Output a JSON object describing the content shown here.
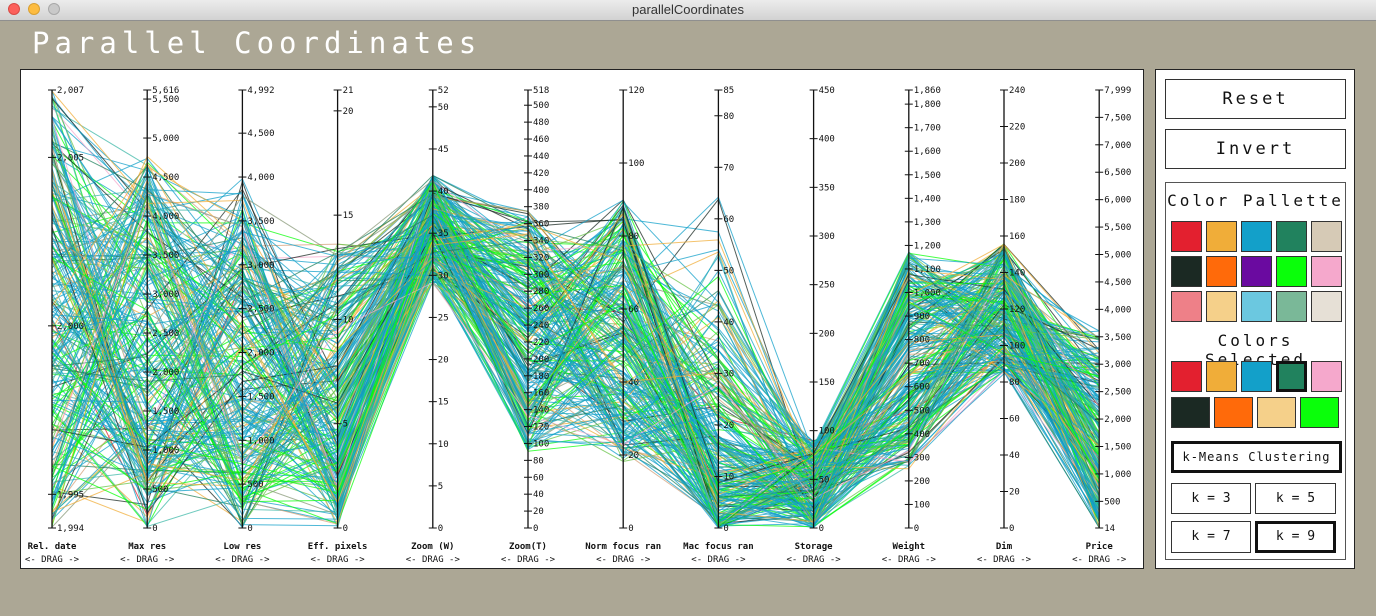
{
  "window": {
    "title": "parallelCoordinates"
  },
  "app_title": "Parallel Coordinates",
  "axes": [
    {
      "name": "Rel. date",
      "range": [
        1994,
        2007
      ],
      "ticks": [
        1994,
        1995,
        2000,
        2005,
        2007
      ],
      "tick_labels": [
        "1,994",
        "1,995",
        "2,000",
        "2,005",
        "2,007"
      ]
    },
    {
      "name": "Max res",
      "range": [
        0,
        5616
      ],
      "ticks": [
        0,
        500,
        1000,
        1500,
        2000,
        2500,
        3000,
        3500,
        4000,
        4500,
        5000,
        5500,
        5616
      ],
      "tick_labels": [
        "0",
        "500",
        "1,000",
        "1,500",
        "2,000",
        "2,500",
        "3,000",
        "3,500",
        "4,000",
        "4,500",
        "5,000",
        "5,500",
        "5,616"
      ]
    },
    {
      "name": "Low res",
      "range": [
        0,
        4992
      ],
      "ticks": [
        0,
        500,
        1000,
        1500,
        2000,
        2500,
        3000,
        3500,
        4000,
        4500,
        4992
      ],
      "tick_labels": [
        "0",
        "500",
        "1,000",
        "1,500",
        "2,000",
        "2,500",
        "3,000",
        "3,500",
        "4,000",
        "4,500",
        "4,992"
      ]
    },
    {
      "name": "Eff. pixels",
      "range": [
        0,
        21
      ],
      "ticks": [
        0,
        5,
        10,
        15,
        20,
        21
      ],
      "tick_labels": [
        "0",
        "5",
        "10",
        "15",
        "20",
        "21"
      ]
    },
    {
      "name": "Zoom (W)",
      "range": [
        0,
        52
      ],
      "ticks": [
        0,
        5,
        10,
        15,
        20,
        25,
        30,
        35,
        40,
        45,
        50,
        52
      ],
      "tick_labels": [
        "0",
        "5",
        "10",
        "15",
        "20",
        "25",
        "30",
        "35",
        "40",
        "45",
        "50",
        "52"
      ]
    },
    {
      "name": "Zoom(T)",
      "range": [
        0,
        518
      ],
      "ticks": [
        0,
        20,
        40,
        60,
        80,
        100,
        120,
        140,
        160,
        180,
        200,
        220,
        240,
        260,
        280,
        300,
        320,
        340,
        360,
        380,
        400,
        420,
        440,
        460,
        480,
        500,
        518
      ],
      "tick_labels": [
        "0",
        "20",
        "40",
        "60",
        "80",
        "100",
        "120",
        "140",
        "160",
        "180",
        "200",
        "220",
        "240",
        "260",
        "280",
        "300",
        "320",
        "340",
        "360",
        "380",
        "400",
        "420",
        "440",
        "460",
        "480",
        "500",
        "518"
      ]
    },
    {
      "name": "Norm focus ran",
      "range": [
        0,
        120
      ],
      "ticks": [
        0,
        20,
        40,
        60,
        80,
        100,
        120
      ],
      "tick_labels": [
        "0",
        "20",
        "40",
        "60",
        "80",
        "100",
        "120"
      ]
    },
    {
      "name": "Mac focus ran",
      "range": [
        0,
        85
      ],
      "ticks": [
        0,
        10,
        20,
        30,
        40,
        50,
        60,
        70,
        80,
        85
      ],
      "tick_labels": [
        "0",
        "10",
        "20",
        "30",
        "40",
        "50",
        "60",
        "70",
        "80",
        "85"
      ]
    },
    {
      "name": "Storage",
      "range": [
        0,
        450
      ],
      "ticks": [
        0,
        50,
        100,
        150,
        200,
        250,
        300,
        350,
        400,
        450
      ],
      "tick_labels": [
        "0",
        "50",
        "100",
        "150",
        "200",
        "250",
        "300",
        "350",
        "400",
        "450"
      ]
    },
    {
      "name": "Weight",
      "range": [
        0,
        1860
      ],
      "ticks": [
        0,
        100,
        200,
        300,
        400,
        500,
        600,
        700,
        800,
        900,
        1000,
        1100,
        1200,
        1300,
        1400,
        1500,
        1600,
        1700,
        1800,
        1860
      ],
      "tick_labels": [
        "0",
        "100",
        "200",
        "300",
        "400",
        "500",
        "600",
        "700",
        "800",
        "900",
        "1,000",
        "1,100",
        "1,200",
        "1,300",
        "1,400",
        "1,500",
        "1,600",
        "1,700",
        "1,800",
        "1,860"
      ]
    },
    {
      "name": "Dim",
      "range": [
        0,
        240
      ],
      "ticks": [
        0,
        20,
        40,
        60,
        80,
        100,
        120,
        140,
        160,
        180,
        200,
        220,
        240
      ],
      "tick_labels": [
        "0",
        "20",
        "40",
        "60",
        "80",
        "100",
        "120",
        "140",
        "160",
        "180",
        "200",
        "220",
        "240"
      ]
    },
    {
      "name": "Price",
      "range": [
        14,
        7999
      ],
      "ticks": [
        14,
        500,
        1000,
        1500,
        2000,
        2500,
        3000,
        3500,
        4000,
        4500,
        5000,
        5500,
        6000,
        6500,
        7000,
        7500,
        7999
      ],
      "tick_labels": [
        "14",
        "500",
        "1,000",
        "1,500",
        "2,000",
        "2,500",
        "3,000",
        "3,500",
        "4,000",
        "4,500",
        "5,000",
        "5,500",
        "6,000",
        "6,500",
        "7,000",
        "7,500",
        "7,999"
      ]
    }
  ],
  "drag_label": "<- DRAG ->",
  "buttons": {
    "reset": "Reset",
    "invert": "Invert",
    "kmeans": "k-Means Clustering",
    "k3": "k = 3",
    "k5": "k = 5",
    "k7": "k = 7",
    "k9": "k = 9"
  },
  "headers": {
    "palette": "Color Pallette",
    "selected": "Colors Selected"
  },
  "palette": [
    "#e3202f",
    "#f0ad39",
    "#13a0c9",
    "#21825e",
    "#d6cab6",
    "#1b2923",
    "#ff6a0a",
    "#6a0aa0",
    "#0aff0a",
    "#f5a8cc",
    "#ee8088",
    "#f5d08a",
    "#6bc8e0",
    "#7ab898",
    "#e6e0d6"
  ],
  "selected_colors": [
    "#e3202f",
    "#f0ad39",
    "#13a0c9",
    "#21825e",
    "#f5a8cc",
    "#1b2923",
    "#ff6a0a",
    "#f5d08a",
    "#0aff0a"
  ],
  "palette_selected_index": 3,
  "selected_k": 9
}
